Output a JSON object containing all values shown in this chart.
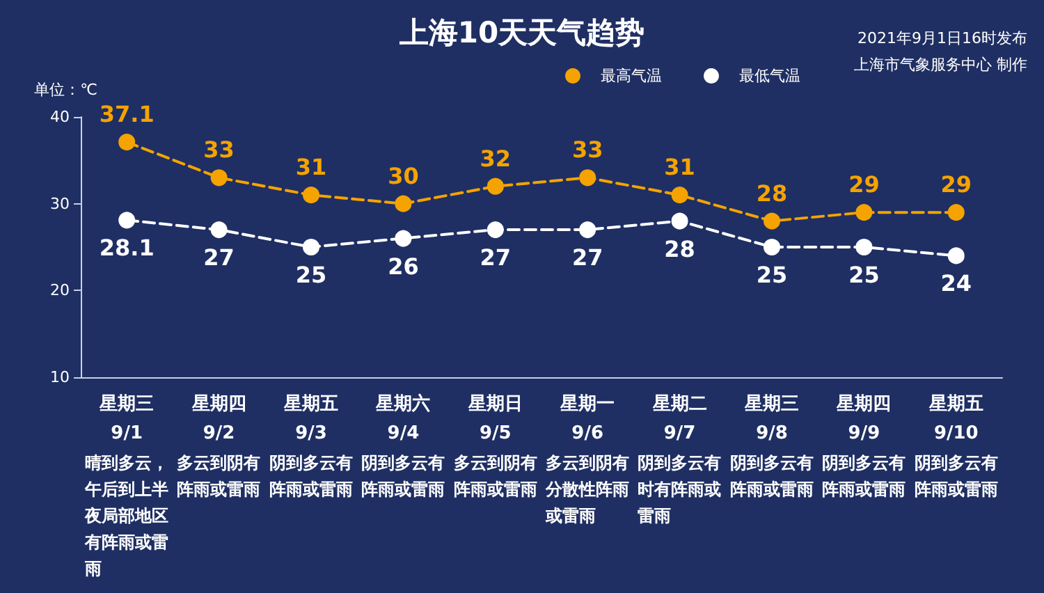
{
  "chart_data": {
    "type": "line",
    "title": "上海10天天气趋势",
    "ylabel": "单位：℃",
    "categories": [
      "星期三\n9/1",
      "星期四\n9/2",
      "星期五\n9/3",
      "星期六\n9/4",
      "星期日\n9/5",
      "星期一\n9/6",
      "星期二\n9/7",
      "星期三\n9/8",
      "星期四\n9/9",
      "星期五\n9/10"
    ],
    "series": [
      {
        "name": "最高气温",
        "color": "#f5a300",
        "values": [
          37.1,
          33,
          31,
          30,
          32,
          33,
          31,
          28,
          29,
          29
        ]
      },
      {
        "name": "最低气温",
        "color": "#ffffff",
        "values": [
          28.1,
          27,
          25,
          26,
          27,
          27,
          28,
          25,
          25,
          24
        ]
      }
    ],
    "ylim": [
      10,
      40
    ],
    "yticks": [
      10,
      20,
      30,
      40
    ],
    "grid": false,
    "legend": "top right",
    "marker": "circle",
    "line_style": "dashed",
    "data_labels": true,
    "annotations": [
      "2021年9月1日16时发布",
      "上海市气象服务中心 制作",
      "晴到多云，午后到上半夜局部地区有阵雨或雷雨",
      "多云到阴有阵雨或雷雨",
      "阴到多云有阵雨或雷雨",
      "阴到多云有阵雨或雷雨",
      "多云到阴有阵雨或雷雨",
      "多云到阴有分散性阵雨或雷雨",
      "阴到多云有时有阵雨或雷雨",
      "阴到多云有阵雨或雷雨",
      "阴到多云有阵雨或雷雨",
      "阴到多云有阵雨或雷雨"
    ]
  }
}
